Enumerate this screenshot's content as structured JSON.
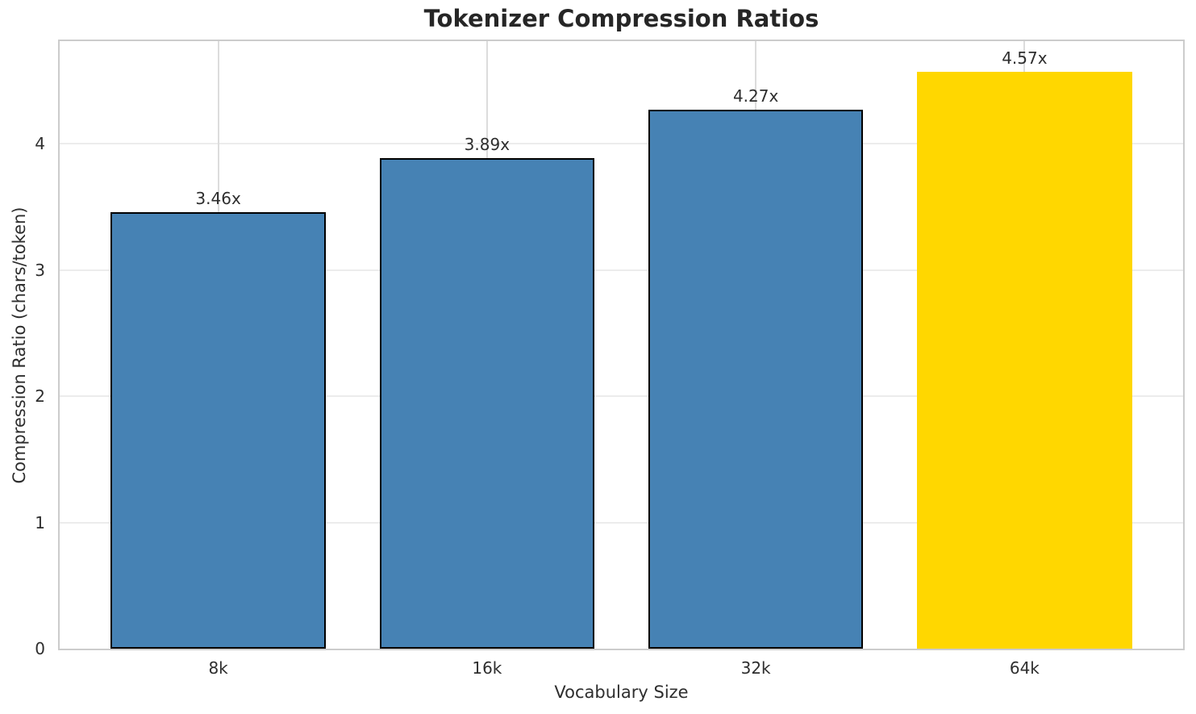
{
  "chart_data": {
    "type": "bar",
    "title": "Tokenizer Compression Ratios",
    "xlabel": "Vocabulary Size",
    "ylabel": "Compression Ratio (chars/token)",
    "categories": [
      "8k",
      "16k",
      "32k",
      "64k"
    ],
    "values": [
      3.46,
      3.89,
      4.27,
      4.57
    ],
    "bar_labels": [
      "3.46x",
      "3.89x",
      "4.27x",
      "4.57x"
    ],
    "x_positions": [
      0,
      1,
      2,
      3
    ],
    "xlim": [
      -0.59,
      3.59
    ],
    "ylim": [
      0,
      4.815
    ],
    "yticks": [
      0,
      1,
      2,
      3,
      4
    ],
    "bar_width_data": 0.8,
    "bar_colors": [
      "#4682b4",
      "#4682b4",
      "#4682b4",
      "#ffd700"
    ],
    "bar_edge_colors": [
      "#000000",
      "#000000",
      "#000000",
      "none"
    ],
    "base_color": "#4682b4",
    "highlight_color": "#ffd700",
    "grid": true,
    "legend": "none"
  }
}
